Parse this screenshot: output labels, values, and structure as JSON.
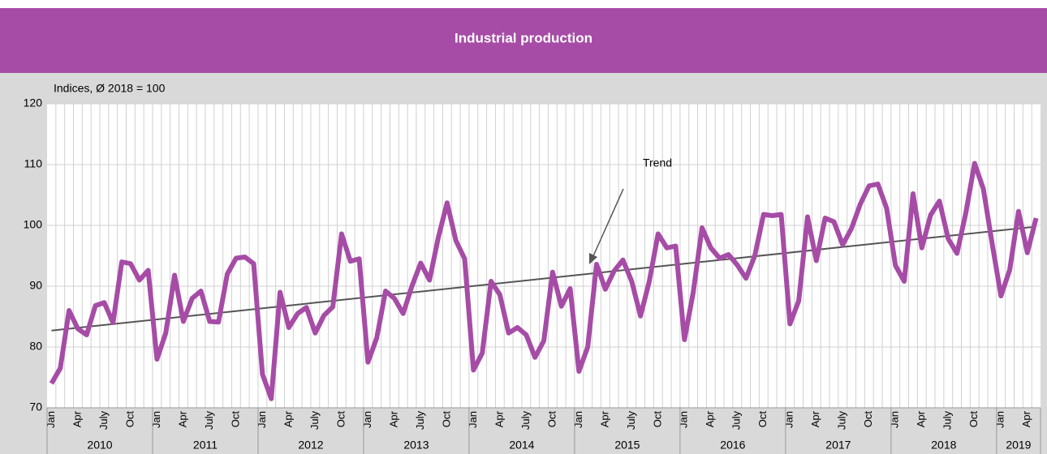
{
  "chart_data": {
    "type": "line",
    "title": "Industrial production",
    "y_label": "Indices, Ø 2018 = 100",
    "categories": [
      "Jan",
      null,
      null,
      "Apr",
      null,
      null,
      "July",
      null,
      null,
      "Oct",
      null,
      null,
      "Jan",
      null,
      null,
      "Apr",
      null,
      null,
      "July",
      null,
      null,
      "Oct",
      null,
      null,
      "Jan",
      null,
      null,
      "Apr",
      null,
      null,
      "July",
      null,
      null,
      "Oct",
      null,
      null,
      "Jan",
      null,
      null,
      "Apr",
      null,
      null,
      "July",
      null,
      null,
      "Oct",
      null,
      null,
      "Jan",
      null,
      null,
      "Apr",
      null,
      null,
      "July",
      null,
      null,
      "Oct",
      null,
      null,
      "Jan",
      null,
      null,
      "Apr",
      null,
      null,
      "July",
      null,
      null,
      "Oct",
      null,
      null,
      "Jan",
      null,
      null,
      "Apr",
      null,
      null,
      "July",
      null,
      null,
      "Oct",
      null,
      null,
      "Jan",
      null,
      null,
      "Apr",
      null,
      null,
      "July",
      null,
      null,
      "Oct",
      null,
      null,
      "Jan",
      null,
      null,
      "Apr",
      null,
      null,
      "July",
      null,
      null,
      "Oct",
      null,
      null,
      "Jan",
      null,
      null,
      "Apr",
      null
    ],
    "years": [
      "2010",
      "2011",
      "2012",
      "2013",
      "2014",
      "2015",
      "2016",
      "2017",
      "2018",
      "2019"
    ],
    "series": [
      {
        "name": "Industrial production",
        "color": "#a64ca6",
        "values": [
          74,
          76.5,
          86,
          83,
          82,
          86.8,
          87.3,
          84,
          94,
          93.7,
          91,
          92.6,
          78,
          82.3,
          91.8,
          84.2,
          88,
          89.2,
          84.2,
          84.1,
          92,
          94.6,
          94.8,
          93.7,
          75.5,
          71.5,
          89,
          83.2,
          85.5,
          86.5,
          82.3,
          85.2,
          86.6,
          98.6,
          94.1,
          94.5,
          77.5,
          81.5,
          89.2,
          88,
          85.5,
          90,
          93.8,
          91,
          98,
          103.7,
          97.5,
          94.5,
          76.2,
          79,
          90.8,
          88.6,
          82.3,
          83.2,
          82,
          78.3,
          81,
          92.3,
          86.7,
          89.6,
          76,
          80,
          93.6,
          89.5,
          92.5,
          94.3,
          90.8,
          85.1,
          90.8,
          98.6,
          96.3,
          96.6,
          81.2,
          89,
          99.6,
          96.3,
          94.6,
          95.2,
          93.5,
          91.3,
          95,
          101.8,
          101.6,
          101.8,
          83.8,
          87.6,
          101.4,
          94.2,
          101.2,
          100.6,
          96.8,
          99.5,
          103.5,
          106.5,
          106.8,
          102.8,
          93.4,
          90.8,
          105.2,
          96.3,
          101.7,
          104,
          97.8,
          95.4,
          102,
          110.2,
          106,
          97,
          88.4,
          92.7,
          102.3,
          95.5,
          101.2
        ]
      }
    ],
    "trend": {
      "name": "Trend",
      "color": "#555555",
      "values": [
        82.7,
        99.8
      ]
    },
    "ylim": [
      70,
      120
    ],
    "yticks": [
      70,
      80,
      90,
      100,
      110,
      120
    ],
    "grid": true
  }
}
